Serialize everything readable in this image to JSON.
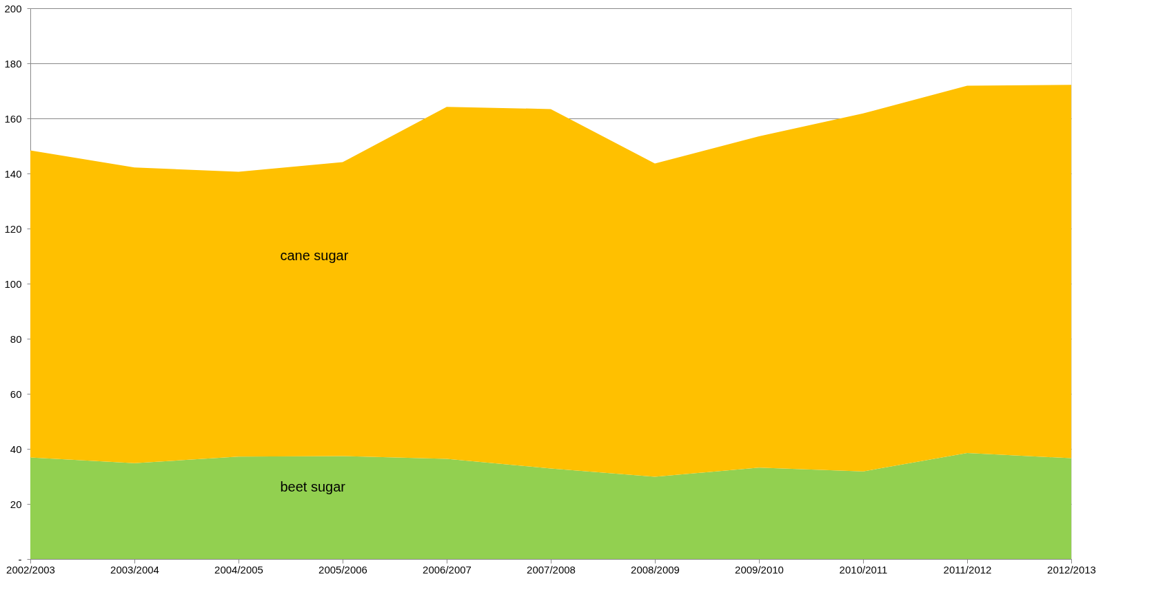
{
  "chart_data": {
    "type": "area",
    "stacked": true,
    "legend": false,
    "grid": "y",
    "categories": [
      "2002/2003",
      "2003/2004",
      "2004/2005",
      "2005/2006",
      "2006/2007",
      "2007/2008",
      "2008/2009",
      "2009/2010",
      "2010/2011",
      "2011/2012",
      "2012/2013"
    ],
    "series": [
      {
        "name": "beet sugar",
        "color": "#92d050",
        "values": [
          36.9,
          34.8,
          37.2,
          37.4,
          36.4,
          32.9,
          29.9,
          33.2,
          31.8,
          38.5,
          36.6
        ]
      },
      {
        "name": "cane sugar",
        "color": "#ffc000",
        "values": [
          111.5,
          107.4,
          103.4,
          106.7,
          127.8,
          130.5,
          113.7,
          120.3,
          130.0,
          133.4,
          135.6
        ]
      }
    ],
    "ylim": [
      0,
      200
    ],
    "yticks": [
      {
        "value": 0,
        "label": "-"
      },
      20,
      40,
      60,
      80,
      100,
      120,
      140,
      160,
      180,
      200
    ]
  }
}
